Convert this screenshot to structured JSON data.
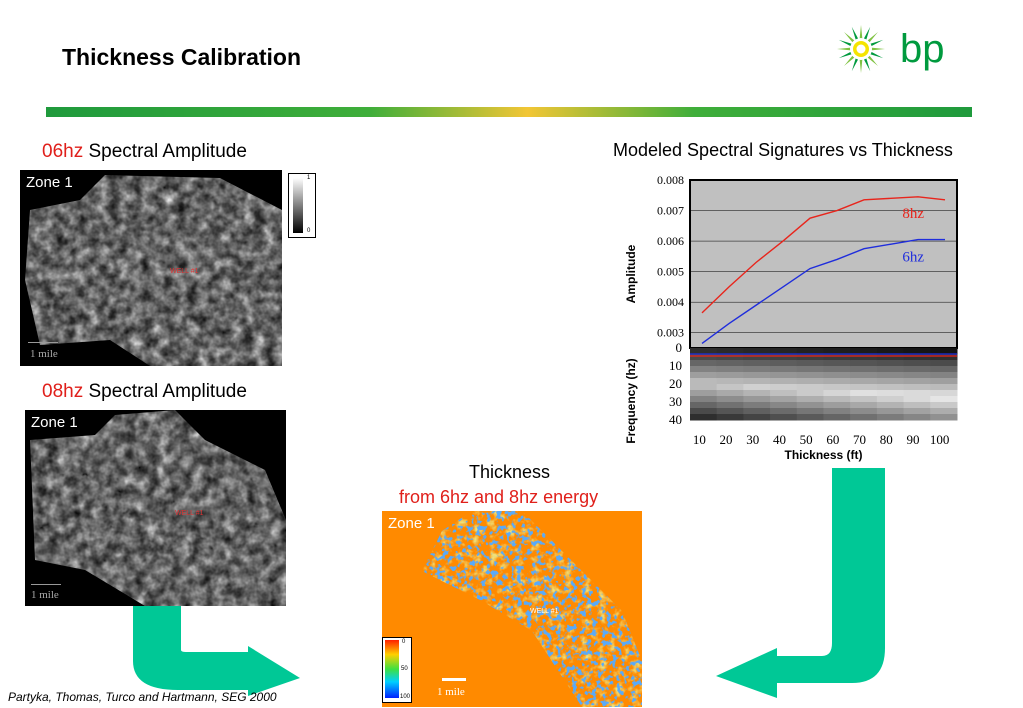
{
  "title": "Thickness Calibration",
  "logo": {
    "text": "bp",
    "colors": {
      "green": "#009a3e",
      "yellow": "#f5e400"
    }
  },
  "maps": {
    "map06": {
      "caption_freq": "06hz",
      "caption_rest": " Spectral Amplitude",
      "zone": "Zone 1",
      "scale_label": "1 mile",
      "well_label": "WELL #1",
      "legend": {
        "top": "1",
        "bottom": "0"
      }
    },
    "map08": {
      "caption_freq": "08hz",
      "caption_rest": " Spectral Amplitude",
      "zone": "Zone 1",
      "scale_label": "1 mile",
      "well_label": "WELL #1"
    },
    "thickness": {
      "caption_line1": "Thickness",
      "caption_line2": "from 6hz and 8hz energy",
      "zone": "Zone 1",
      "scale_label": "1 mile",
      "well_label": "WELL #1",
      "legend": {
        "top": "0",
        "mid": "50",
        "bottom": "100"
      }
    }
  },
  "chart_title": "Modeled Spectral Signatures vs Thickness",
  "chart_data": [
    {
      "type": "line",
      "ylabel": "Amplitude",
      "ylim": [
        0.0025,
        0.008
      ],
      "yticks": [
        "0.008",
        "0.007",
        "0.006",
        "0.005",
        "0.004",
        "0.003"
      ],
      "x": [
        10,
        20,
        30,
        40,
        50,
        60,
        70,
        80,
        90,
        100
      ],
      "series": [
        {
          "name": "8hz",
          "color": "#e8251c",
          "values": [
            0.00365,
            0.0045,
            0.0053,
            0.006,
            0.00675,
            0.007,
            0.00735,
            0.0074,
            0.00745,
            0.00735
          ]
        },
        {
          "name": "6hz",
          "color": "#1f2ddc",
          "values": [
            0.00265,
            0.0033,
            0.0039,
            0.0045,
            0.0051,
            0.0054,
            0.00575,
            0.0059,
            0.00605,
            0.00605
          ]
        }
      ],
      "grid": true
    },
    {
      "type": "heatmap",
      "xlabel": "Thickness (ft)",
      "ylabel": "Frequency (hz)",
      "yticks": [
        "0",
        "10",
        "20",
        "30",
        "40"
      ],
      "xticks": [
        "10",
        "20",
        "30",
        "40",
        "50",
        "60",
        "70",
        "80",
        "90",
        "100"
      ]
    }
  ],
  "citation": "Partyka, Thomas, Turco and Hartmann, SEG 2000"
}
